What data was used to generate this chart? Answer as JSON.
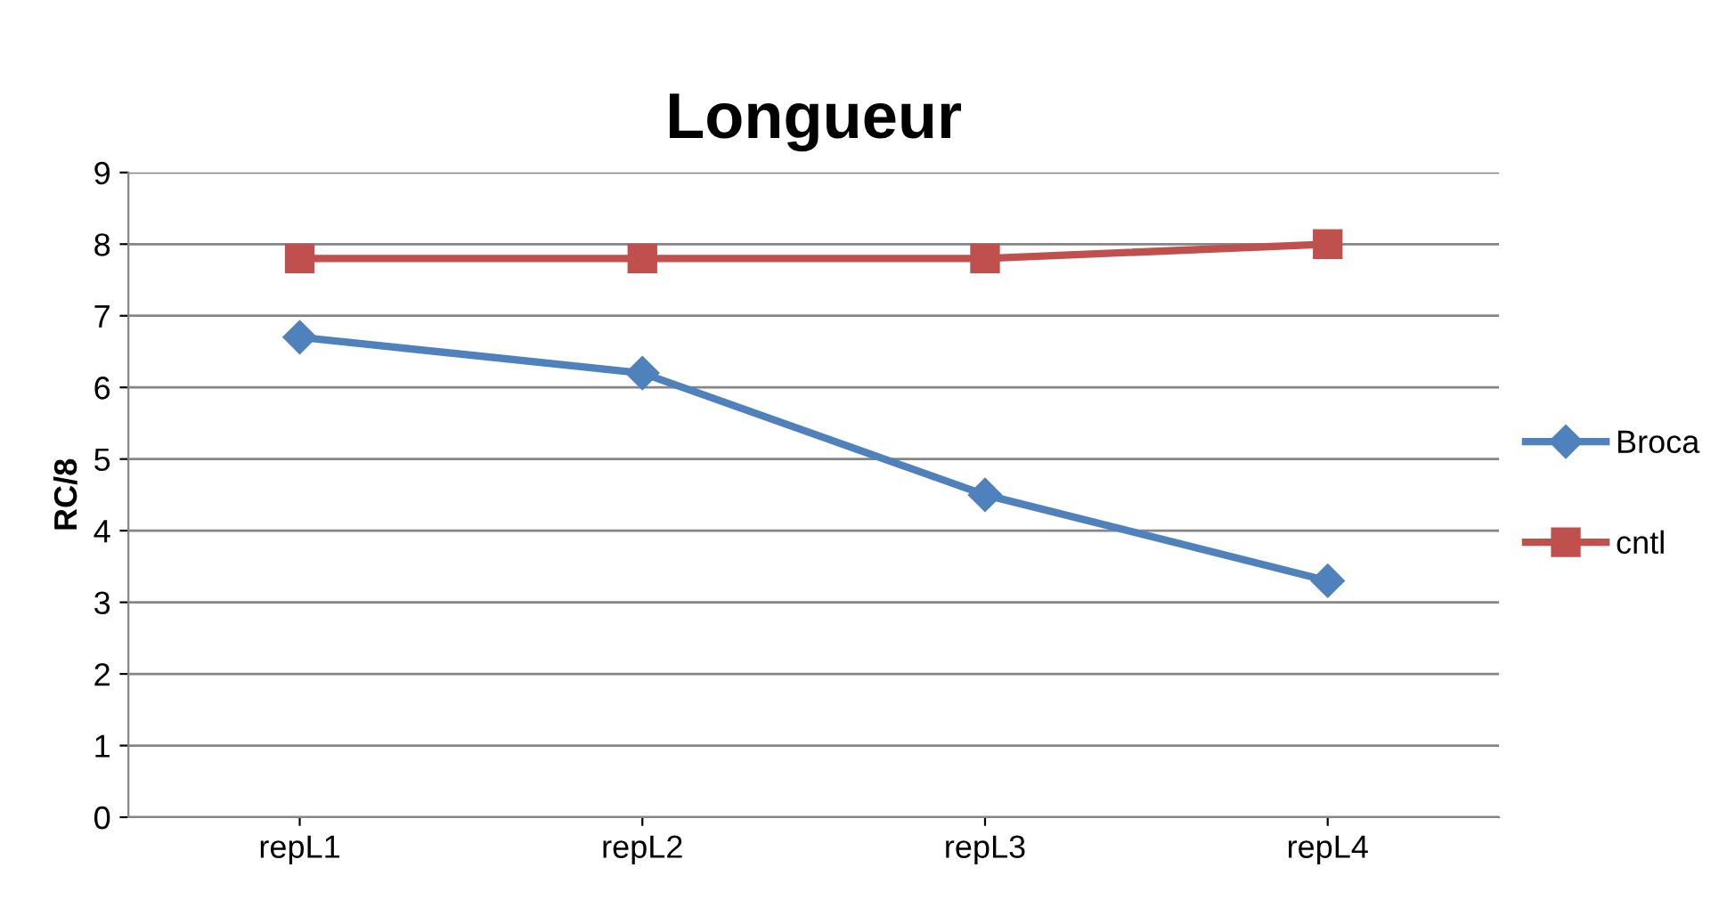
{
  "chart_data": {
    "type": "line",
    "title": "Longueur",
    "ylabel": "RC/8",
    "categories": [
      "repL1",
      "repL2",
      "repL3",
      "repL4"
    ],
    "series": [
      {
        "name": "Broca",
        "color": "#4f81bd",
        "marker": "diamond",
        "values": [
          6.7,
          6.2,
          4.5,
          3.3
        ]
      },
      {
        "name": "cntl",
        "color": "#c0504d",
        "marker": "square",
        "values": [
          7.8,
          7.8,
          7.8,
          8.0
        ]
      }
    ],
    "ylim": [
      0,
      9
    ],
    "yticks": [
      0,
      1,
      2,
      3,
      4,
      5,
      6,
      7,
      8,
      9
    ],
    "grid": "y",
    "legend": "right",
    "line_style": "solid"
  }
}
